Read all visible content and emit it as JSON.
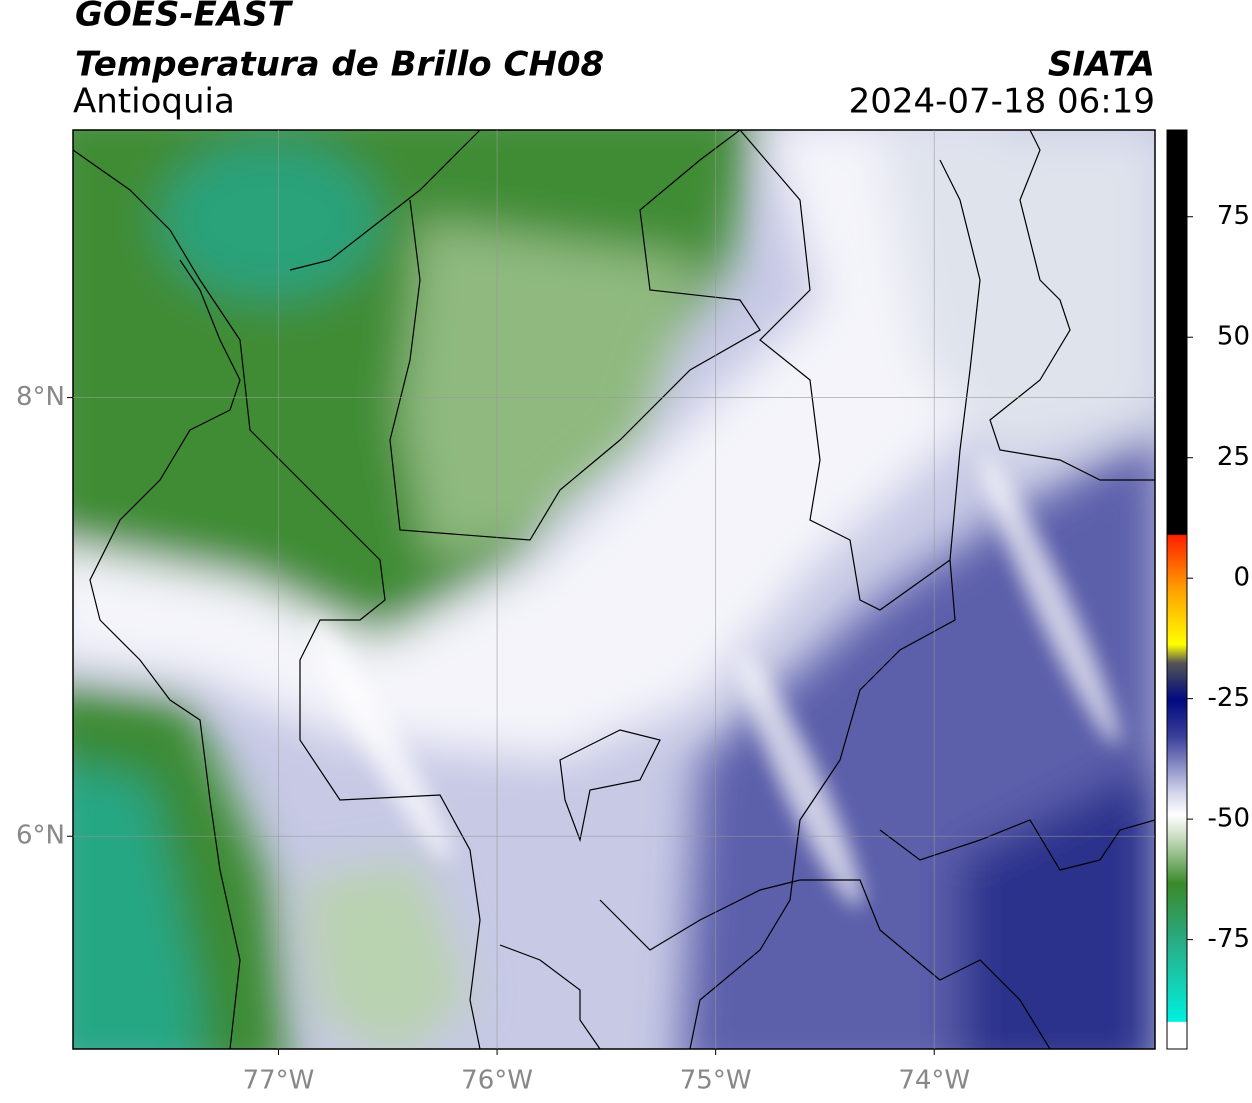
{
  "header": {
    "title": "GOES-EAST",
    "subtitle": "Temperatura de Brillo CH08",
    "region": "Antioquia",
    "source": "SIATA",
    "datetime": "2024-07-18 06:19"
  },
  "map": {
    "xlim": [
      -77.94,
      -72.99
    ],
    "ylim": [
      5.03,
      9.22
    ],
    "xticks": [
      {
        "value": -77,
        "label": "77°W"
      },
      {
        "value": -76,
        "label": "76°W"
      },
      {
        "value": -75,
        "label": "75°W"
      },
      {
        "value": -74,
        "label": "74°W"
      }
    ],
    "yticks": [
      {
        "value": 8,
        "label": "8°N"
      },
      {
        "value": 6,
        "label": "6°N"
      }
    ],
    "grid": true
  },
  "colorbar": {
    "lim": [
      -97.7,
      93
    ],
    "ticks": [
      75,
      50,
      25,
      0,
      -25,
      -50,
      -75
    ]
  }
}
